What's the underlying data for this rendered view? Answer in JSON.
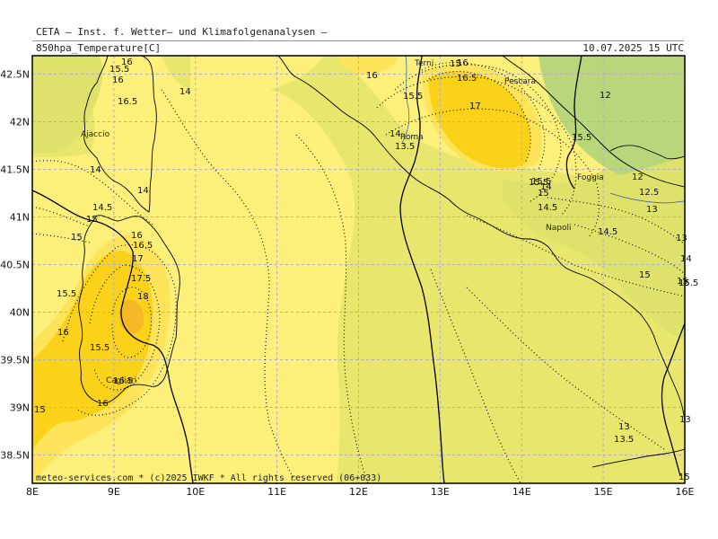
{
  "header": {
    "org_line": "CETA — Inst. f. Wetter— und Klimafolgenanalysen —",
    "parameter": "850hpa_Temperature[C]",
    "valid_time": "10.07.2025  15 UTC"
  },
  "footer": {
    "credit": "meteo-services.com * (c)2025 IWKF * All rights reserved (06+033)"
  },
  "axes": {
    "lon_labels": [
      "8E",
      "9E",
      "10E",
      "11E",
      "12E",
      "13E",
      "14E",
      "15E",
      "16E"
    ],
    "lat_labels": [
      "42.5N",
      "42N",
      "41.5N",
      "41N",
      "40.5N",
      "40N",
      "39.5N",
      "39N",
      "38.5N"
    ]
  },
  "colors": {
    "band_14": "#b9d77a",
    "band_14_5": "#dfe26a",
    "band_15": "#e8e66c",
    "band_15_5": "#fdf07a",
    "band_16": "#fde45a",
    "band_17": "#fbd21a",
    "band_18": "#f5b928",
    "coast": "#000000",
    "grid": "#b0b0b0"
  },
  "cities": [
    {
      "name": "Ajaccio"
    },
    {
      "name": "Roma"
    },
    {
      "name": "Terni"
    },
    {
      "name": "Pescara"
    },
    {
      "name": "Foggia"
    },
    {
      "name": "Napoli"
    },
    {
      "name": "Cagliari"
    }
  ],
  "contour_labels": [
    "15.5",
    "16",
    "16.5",
    "14",
    "14",
    "14",
    "14.5",
    "15",
    "15",
    "15.5",
    "16",
    "16.5",
    "17",
    "17.5",
    "18",
    "15.5",
    "16",
    "16.5",
    "16",
    "16",
    "14",
    "13.5",
    "15.5",
    "16",
    "16",
    "16.5",
    "17",
    "15.5",
    "15",
    "14.5",
    "15.5",
    "12",
    "15.5",
    "12",
    "12.5",
    "13",
    "14.5",
    "13",
    "14",
    "15",
    "15",
    "15",
    "13.5",
    "13",
    "13",
    "15",
    "15.5",
    "15",
    "14",
    "15"
  ]
}
